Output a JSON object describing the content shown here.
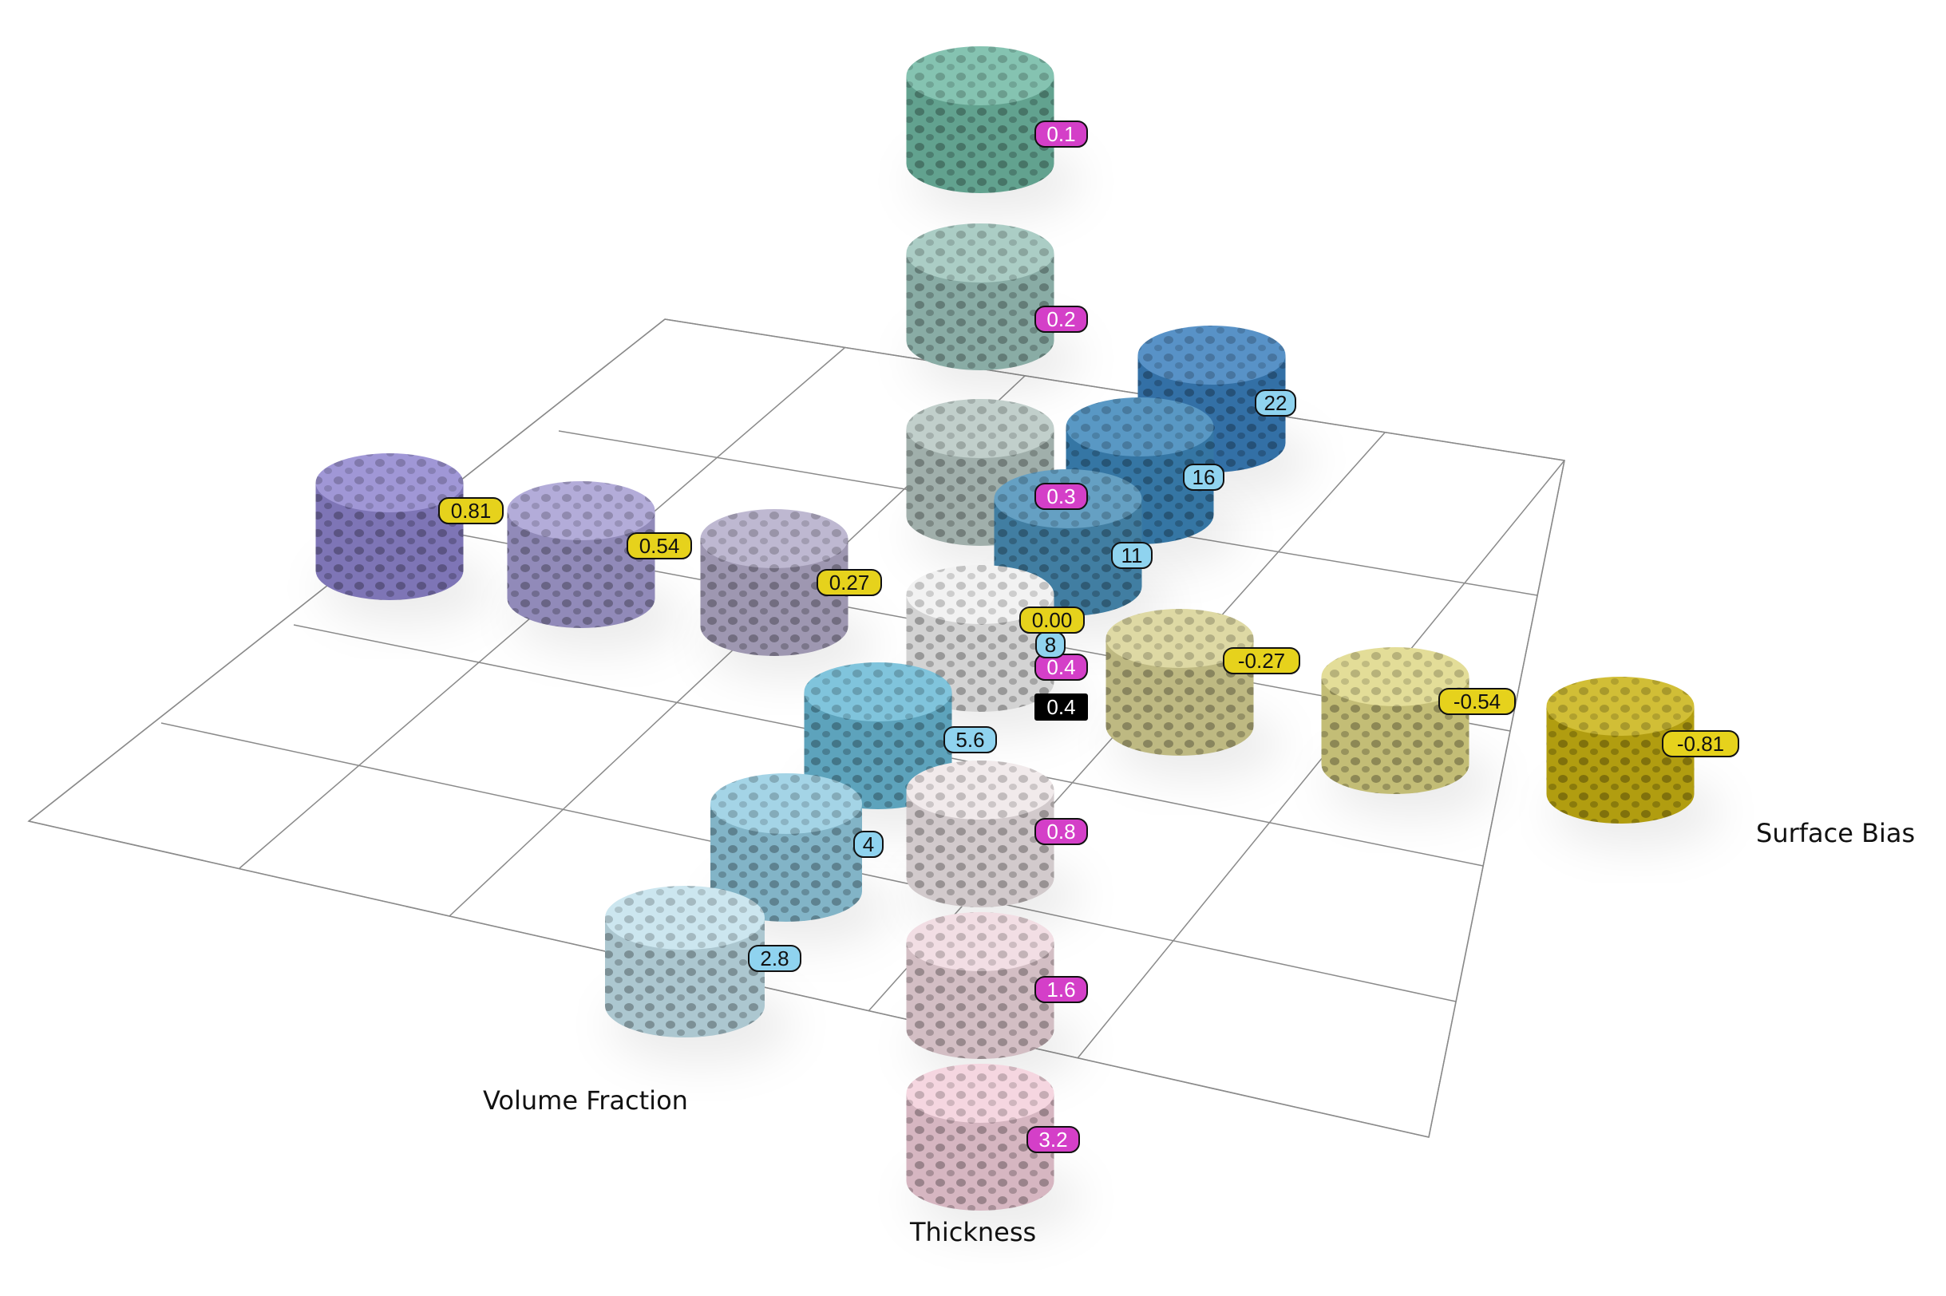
{
  "axes": {
    "volume_fraction": "Volume Fraction",
    "thickness": "Thickness",
    "surface_bias": "Surface Bias"
  },
  "colors": {
    "thickness_badge": "#d43fc8",
    "cell_size_badge": "#8fd3ef",
    "bias_badge": "#e6d21c",
    "center_badge": "#000000",
    "grid": "#8a8a8a"
  },
  "samples": {
    "thickness": [
      {
        "label": "0.1",
        "color": "#6fb8a3"
      },
      {
        "label": "0.2",
        "color": "#9cc4bb"
      },
      {
        "label": "0.3",
        "color": "#b6c7c2"
      },
      {
        "label": "0.4",
        "color": "#f0f0f0"
      },
      {
        "label": "0.8",
        "color": "#efe6e8"
      },
      {
        "label": "1.6",
        "color": "#f0d8df"
      },
      {
        "label": "3.2",
        "color": "#f3cfdb"
      }
    ],
    "cell_size": [
      {
        "label": "22",
        "color": "#3a7fbd"
      },
      {
        "label": "16",
        "color": "#3c86ba"
      },
      {
        "label": "11",
        "color": "#4a8fb8"
      },
      {
        "label": "8",
        "color": "#f0f0f0"
      },
      {
        "label": "5.6",
        "color": "#6ab9d6"
      },
      {
        "label": "4",
        "color": "#94cce2"
      },
      {
        "label": "2.8",
        "color": "#c3e2ec"
      }
    ],
    "surface_bias": [
      {
        "label": "0.81",
        "color": "#8f85cf"
      },
      {
        "label": "0.54",
        "color": "#a59dd2"
      },
      {
        "label": "0.27",
        "color": "#b3acc9"
      },
      {
        "label": "0.00",
        "color": "#f0f0f0"
      },
      {
        "label": "-0.27",
        "color": "#d8d294"
      },
      {
        "label": "-0.54",
        "color": "#ded786"
      },
      {
        "label": "-0.81",
        "color": "#c9b212"
      }
    ],
    "center": {
      "label": "0.4"
    }
  }
}
